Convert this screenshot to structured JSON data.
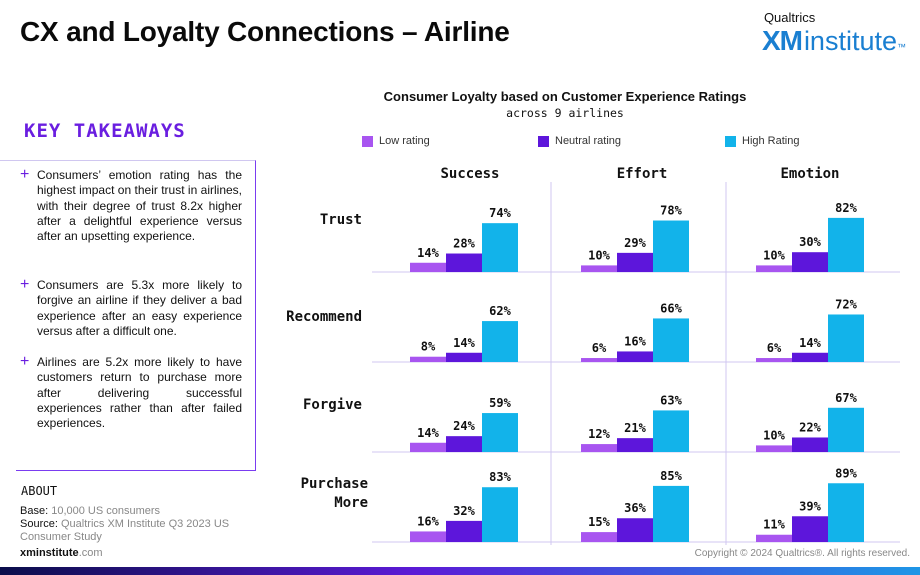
{
  "header": {
    "title": "CX and Loyalty Connections – Airline"
  },
  "logo": {
    "top": "Qualtrics",
    "xm": "XM",
    "institute": "institute",
    "tm": "™"
  },
  "key_takeaways": {
    "title": "KEY TAKEAWAYS",
    "items": [
      "Consumers’ emotion rating has the highest impact on their trust in airlines, with their degree of trust 8.2x higher after a delightful experience versus after an upsetting experience.",
      "Consumers are 5.3x more likely to forgive an airline if they deliver a bad experience after an easy experience versus after a difficult one.",
      "Airlines are 5.2x more likely to have customers return to purchase more after delivering successful experiences rather than after failed experiences."
    ]
  },
  "about": {
    "title": "ABOUT",
    "base_label": "Base:",
    "base_value": "10,000 US consumers",
    "source_label": "Source:",
    "source_value": "Qualtrics XM Institute Q3 2023 US Consumer Study"
  },
  "footer": {
    "site_bold": "xminstitute",
    "site_rest": ".com",
    "copyright": "Copyright © 2024 Qualtrics®. All rights reserved."
  },
  "colors": {
    "low": "#a855f0",
    "neutral": "#5d16db",
    "high": "#12b3ea",
    "accent": "#6a1ee0"
  },
  "chart_data": {
    "type": "bar",
    "title": "Consumer Loyalty based on Customer Experience Ratings",
    "subtitle": "across 9 airlines",
    "legend": [
      "Low rating",
      "Neutral rating",
      "High Rating"
    ],
    "legend_position": "top",
    "columns": [
      "Success",
      "Effort",
      "Emotion"
    ],
    "rows": [
      "Trust",
      "Recommend",
      "Forgive",
      "Purchase More"
    ],
    "unit": "%",
    "values": [
      [
        [
          14,
          28,
          74
        ],
        [
          10,
          29,
          78
        ],
        [
          10,
          30,
          82
        ]
      ],
      [
        [
          8,
          14,
          62
        ],
        [
          6,
          16,
          66
        ],
        [
          6,
          14,
          72
        ]
      ],
      [
        [
          14,
          24,
          59
        ],
        [
          12,
          21,
          63
        ],
        [
          10,
          22,
          67
        ]
      ],
      [
        [
          16,
          32,
          83
        ],
        [
          15,
          36,
          85
        ],
        [
          11,
          39,
          89
        ]
      ]
    ],
    "ylim": [
      0,
      100
    ]
  }
}
